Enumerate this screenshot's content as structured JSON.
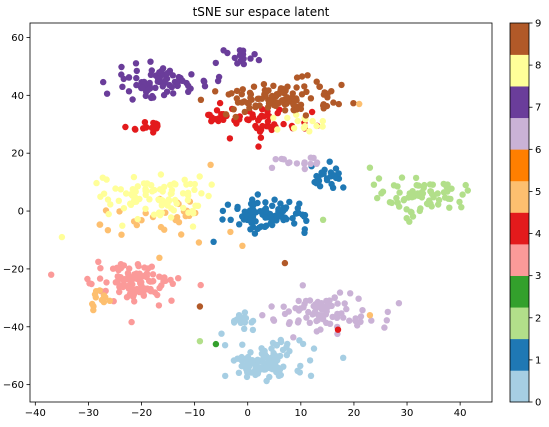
{
  "chart_data": {
    "type": "scatter",
    "title": "tSNE sur espace latent",
    "xlabel": "",
    "ylabel": "",
    "xlim": [
      -41,
      46
    ],
    "ylim": [
      -66,
      65
    ],
    "xticks": [
      -40,
      -30,
      -20,
      -10,
      0,
      10,
      20,
      30,
      40
    ],
    "yticks": [
      -60,
      -40,
      -20,
      0,
      20,
      40,
      60
    ],
    "grid": false,
    "colorbar": {
      "range": [
        0,
        9
      ],
      "ticks": [
        0,
        1,
        2,
        3,
        4,
        5,
        6,
        7,
        8,
        9
      ],
      "colormap": "Paired",
      "colors": [
        "#a6cee3",
        "#1f78b4",
        "#b2df8a",
        "#33a02c",
        "#fb9a99",
        "#e31a1c",
        "#fdbf6f",
        "#ff7f00",
        "#cab2d6",
        "#6a3d9a",
        "#ffff99",
        "#b15928"
      ]
    },
    "clusters": [
      {
        "label": 0,
        "color": "#a6cee3",
        "center": [
          3,
          -52
        ],
        "spread": [
          7,
          6
        ],
        "count": 110
      },
      {
        "label": 0,
        "color": "#a6cee3",
        "center": [
          -1,
          -38
        ],
        "spread": [
          3,
          3
        ],
        "count": 15
      },
      {
        "label": 1,
        "color": "#1f78b4",
        "center": [
          4,
          -1
        ],
        "spread": [
          7,
          5
        ],
        "count": 90
      },
      {
        "label": 1,
        "color": "#1f78b4",
        "center": [
          15,
          12
        ],
        "spread": [
          3,
          3
        ],
        "count": 25
      },
      {
        "label": 2,
        "color": "#b2df8a",
        "center": [
          33,
          5
        ],
        "spread": [
          8,
          6
        ],
        "count": 75
      },
      {
        "label": 4,
        "color": "#fb9a99",
        "center": [
          -21,
          -25
        ],
        "spread": [
          7,
          6
        ],
        "count": 110
      },
      {
        "label": 5,
        "color": "#e31a1c",
        "center": [
          2,
          31
        ],
        "spread": [
          10,
          5
        ],
        "count": 60
      },
      {
        "label": 5,
        "color": "#e31a1c",
        "center": [
          -19,
          29
        ],
        "spread": [
          3,
          2
        ],
        "count": 15
      },
      {
        "label": 6,
        "color": "#fdbf6f",
        "center": [
          -18,
          -3
        ],
        "spread": [
          12,
          10
        ],
        "count": 30
      },
      {
        "label": 6,
        "color": "#fdbf6f",
        "center": [
          -28,
          -30
        ],
        "spread": [
          3,
          4
        ],
        "count": 12
      },
      {
        "label": 7,
        "color": "#cab2d6",
        "center": [
          15,
          -35
        ],
        "spread": [
          9,
          6
        ],
        "count": 80
      },
      {
        "label": 7,
        "color": "#cab2d6",
        "center": [
          9,
          17
        ],
        "spread": [
          5,
          2
        ],
        "count": 15
      },
      {
        "label": 8,
        "color": "#6a3d9a",
        "center": [
          -17,
          45
        ],
        "spread": [
          8,
          5
        ],
        "count": 75
      },
      {
        "label": 8,
        "color": "#6a3d9a",
        "center": [
          -2,
          53
        ],
        "spread": [
          3,
          3
        ],
        "count": 15
      },
      {
        "label": 9,
        "color": "#ffff99",
        "center": [
          -18,
          5
        ],
        "spread": [
          9,
          7
        ],
        "count": 90
      },
      {
        "label": 9,
        "color": "#ffff99",
        "center": [
          11,
          30
        ],
        "spread": [
          5,
          4
        ],
        "count": 15
      },
      {
        "label": 10,
        "color": "#b15928",
        "center": [
          6,
          39
        ],
        "spread": [
          12,
          5
        ],
        "count": 100
      }
    ],
    "extra_points": [
      {
        "x": -37,
        "y": -22,
        "color": "#fb9a99"
      },
      {
        "x": -35,
        "y": -9,
        "color": "#ffff99"
      },
      {
        "x": -6,
        "y": -46,
        "color": "#33a02c"
      },
      {
        "x": -9,
        "y": -45,
        "color": "#b2df8a"
      },
      {
        "x": 17,
        "y": -41,
        "color": "#e31a1c"
      },
      {
        "x": -9,
        "y": -33,
        "color": "#b15928"
      },
      {
        "x": 21,
        "y": 37,
        "color": "#fdbf6f"
      },
      {
        "x": 23,
        "y": 15,
        "color": "#b2df8a"
      },
      {
        "x": 7,
        "y": -18,
        "color": "#b15928"
      },
      {
        "x": -1,
        "y": -12,
        "color": "#fdbf6f"
      },
      {
        "x": -7,
        "y": 16,
        "color": "#fdbf6f"
      },
      {
        "x": 23,
        "y": -36,
        "color": "#fdbf6f"
      }
    ]
  }
}
